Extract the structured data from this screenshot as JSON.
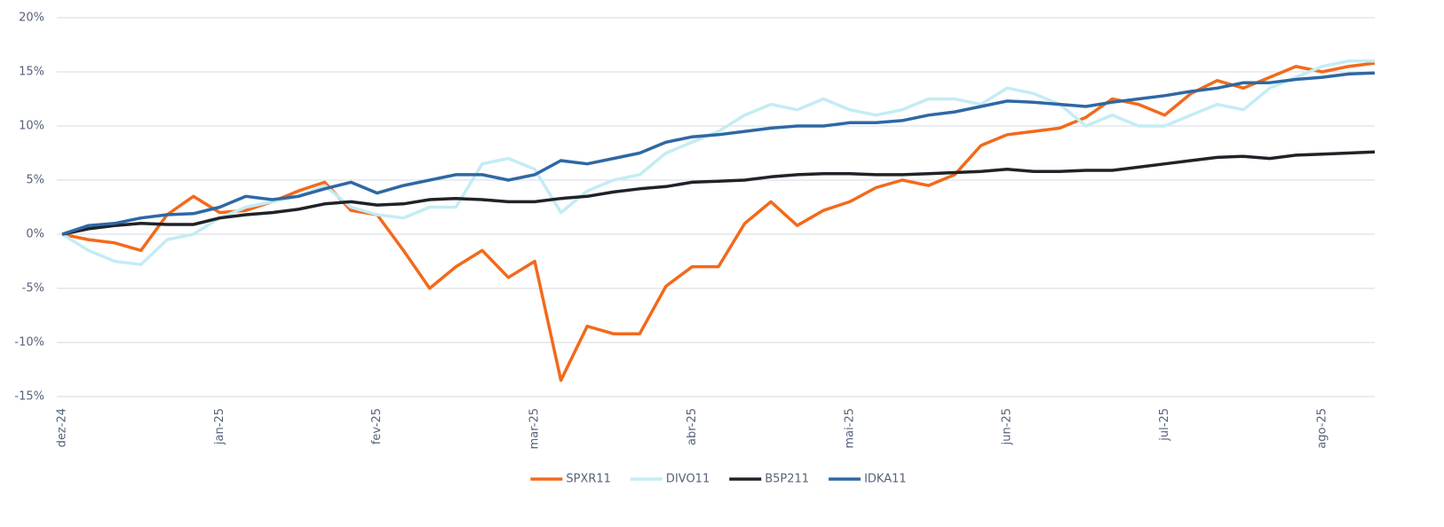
{
  "chart_data": {
    "type": "line",
    "categories": [
      "dez-24",
      null,
      null,
      null,
      null,
      null,
      "jan-25",
      null,
      null,
      null,
      null,
      null,
      "fev-25",
      null,
      null,
      null,
      null,
      null,
      "mar-25",
      null,
      null,
      null,
      null,
      null,
      "abr-25",
      null,
      null,
      null,
      null,
      null,
      "mai-25",
      null,
      null,
      null,
      null,
      null,
      "jun-25",
      null,
      null,
      null,
      null,
      null,
      "jul-25",
      null,
      null,
      null,
      null,
      null,
      "ago-25",
      null,
      null
    ],
    "series": [
      {
        "name": "SPXR11",
        "color": "#f26a1b",
        "values": [
          0,
          -0.5,
          -0.8,
          -1.5,
          1.8,
          3.5,
          2.0,
          2.2,
          3.0,
          4.0,
          4.8,
          2.2,
          1.8,
          -1.5,
          -5.0,
          -3.0,
          -1.5,
          -4.0,
          -2.5,
          -13.5,
          -8.5,
          -9.2,
          -9.2,
          -4.8,
          -3.0,
          -3.0,
          1.0,
          3.0,
          0.8,
          2.2,
          3.0,
          4.3,
          5.0,
          4.5,
          5.5,
          8.2,
          9.2,
          9.5,
          9.8,
          10.8,
          12.5,
          12.0,
          11.0,
          13.0,
          14.2,
          13.5,
          14.5,
          15.5,
          15.0,
          15.5,
          15.8
        ]
      },
      {
        "name": "DIVO11",
        "color": "#c4ecf4",
        "values": [
          0,
          -1.5,
          -2.5,
          -2.8,
          -0.5,
          0,
          1.5,
          2.5,
          3.0,
          3.5,
          4.5,
          2.5,
          1.8,
          1.5,
          2.5,
          2.5,
          6.5,
          7.0,
          6.0,
          2.0,
          4.0,
          5.0,
          5.5,
          7.5,
          8.5,
          9.5,
          11.0,
          12.0,
          11.5,
          12.5,
          11.5,
          11.0,
          11.5,
          12.5,
          12.5,
          12.0,
          13.5,
          13.0,
          12.0,
          10.0,
          11.0,
          10.0,
          10.0,
          11.0,
          12.0,
          11.5,
          13.5,
          14.5,
          15.5,
          16.0,
          16.0
        ]
      },
      {
        "name": "B5P211",
        "color": "#1f2328",
        "values": [
          0,
          0.5,
          0.8,
          1.0,
          0.9,
          0.9,
          1.5,
          1.8,
          2.0,
          2.3,
          2.8,
          3.0,
          2.7,
          2.8,
          3.2,
          3.3,
          3.2,
          3.0,
          3.0,
          3.3,
          3.5,
          3.9,
          4.2,
          4.4,
          4.8,
          4.9,
          5.0,
          5.3,
          5.5,
          5.6,
          5.6,
          5.5,
          5.5,
          5.6,
          5.7,
          5.8,
          6.0,
          5.8,
          5.8,
          5.9,
          5.9,
          6.2,
          6.5,
          6.8,
          7.1,
          7.2,
          7.0,
          7.3,
          7.4,
          7.5,
          7.6
        ]
      },
      {
        "name": "IDKA11",
        "color": "#2e68a4",
        "values": [
          0,
          0.8,
          1.0,
          1.5,
          1.8,
          1.9,
          2.5,
          3.5,
          3.2,
          3.5,
          4.2,
          4.8,
          3.8,
          4.5,
          5.0,
          5.5,
          5.5,
          5.0,
          5.5,
          6.8,
          6.5,
          7.0,
          7.5,
          8.5,
          9.0,
          9.2,
          9.5,
          9.8,
          10.0,
          10.0,
          10.3,
          10.3,
          10.5,
          11.0,
          11.3,
          11.8,
          12.3,
          12.2,
          12.0,
          11.8,
          12.2,
          12.5,
          12.8,
          13.2,
          13.5,
          14.0,
          14.0,
          14.3,
          14.5,
          14.8,
          14.9
        ]
      }
    ],
    "ylim": [
      -15,
      20
    ],
    "yticks": [
      {
        "value": -15,
        "label": "-15%"
      },
      {
        "value": -10,
        "label": "-10%"
      },
      {
        "value": -5,
        "label": "-5%"
      },
      {
        "value": 0,
        "label": "0%"
      },
      {
        "value": 5,
        "label": "5%"
      },
      {
        "value": 10,
        "label": "10%"
      },
      {
        "value": 15,
        "label": "15%"
      },
      {
        "value": 20,
        "label": "20%"
      }
    ],
    "grid": true,
    "legend": "bottom"
  }
}
